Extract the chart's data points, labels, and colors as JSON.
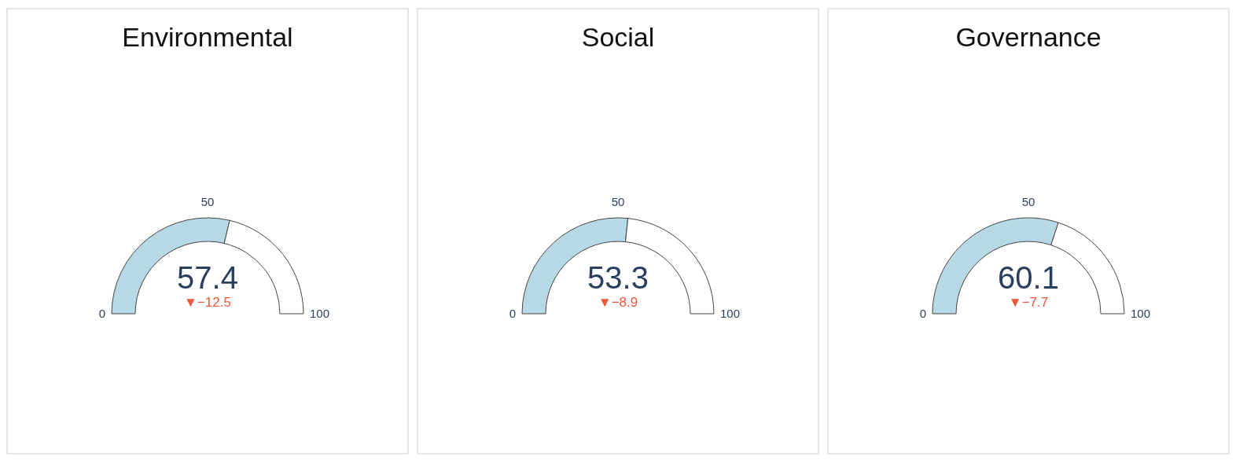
{
  "chart_data": [
    {
      "type": "donut",
      "title": "Environmental",
      "categories": [
        null,
        null
      ],
      "values": [
        57.4,
        42.6
      ],
      "colors": [
        "#b7d8e5",
        "#ffffff"
      ],
      "value_labels": [
        "57.4",
        null
      ],
      "annotations": [
        "▼−12.5",
        "0",
        "50",
        "100"
      ]
    },
    {
      "type": "donut",
      "title": "Social",
      "categories": [
        null,
        null
      ],
      "values": [
        53.3,
        46.7
      ],
      "colors": [
        "#b7d8e5",
        "#ffffff"
      ],
      "value_labels": [
        "53.3",
        null
      ],
      "annotations": [
        "▼−8.9",
        "0",
        "50",
        "100"
      ]
    },
    {
      "type": "donut",
      "title": "Governance",
      "categories": [
        null,
        null
      ],
      "values": [
        60.1,
        39.9
      ],
      "colors": [
        "#b7d8e5",
        "#ffffff"
      ],
      "value_labels": [
        "60.1",
        null
      ],
      "annotations": [
        "▼−7.7",
        "0",
        "50",
        "100"
      ]
    }
  ]
}
